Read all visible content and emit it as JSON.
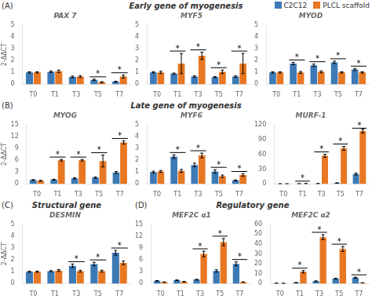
{
  "legend": "upper right",
  "annotations": [
    {
      "text": "(A)"
    },
    {
      "text": "Early gene of myogenesis"
    },
    {
      "text": "(B)"
    },
    {
      "text": "Late gene of myogenesis"
    },
    {
      "text": "(C)"
    },
    {
      "text": "Structural gene"
    },
    {
      "text": "(D)"
    },
    {
      "text": "Regulatory gene"
    }
  ],
  "chart_data": [
    {
      "type": "bar",
      "title": "PAX 7",
      "ylabel": "2-ΔΔCT",
      "categories": [
        "T0",
        "T1",
        "T3",
        "T5",
        "T7"
      ],
      "series": [
        {
          "name": "C2C12",
          "color": "#3d7ab5",
          "values": [
            1.0,
            1.05,
            0.62,
            0.38,
            0.22
          ],
          "errors": [
            0.05,
            0.06,
            0.07,
            0.05,
            0.04
          ]
        },
        {
          "name": "PLCL scaffold",
          "color": "#e87722",
          "values": [
            1.0,
            1.1,
            0.65,
            0.18,
            0.65
          ],
          "errors": [
            0.05,
            0.1,
            0.08,
            0.04,
            0.12
          ]
        }
      ],
      "ylim": [
        0,
        5
      ],
      "yticks": [
        0,
        1,
        2,
        3,
        4,
        5
      ],
      "grid": false,
      "annotations": [
        {
          "text": "*",
          "x": "T5"
        },
        {
          "text": "*",
          "x": "T7"
        }
      ]
    },
    {
      "type": "bar",
      "title": "MYF5",
      "categories": [
        "T0",
        "T1",
        "T3",
        "T5",
        "T7"
      ],
      "series": [
        {
          "name": "C2C12",
          "color": "#3d7ab5",
          "values": [
            1.0,
            0.9,
            0.65,
            0.6,
            0.65
          ],
          "errors": [
            0.05,
            0.05,
            0.06,
            0.05,
            0.06
          ]
        },
        {
          "name": "PLCL scaffold",
          "color": "#e87722",
          "values": [
            1.0,
            1.75,
            2.4,
            1.05,
            1.75
          ],
          "errors": [
            0.1,
            0.85,
            0.3,
            0.15,
            0.85
          ]
        }
      ],
      "ylim": [
        0,
        5
      ],
      "yticks": [
        0,
        1,
        2,
        3,
        4,
        5
      ],
      "grid": false,
      "annotations": [
        {
          "text": "*",
          "x": "T1"
        },
        {
          "text": "*",
          "x": "T3"
        },
        {
          "text": "*",
          "x": "T5"
        },
        {
          "text": "*",
          "x": "T7"
        }
      ]
    },
    {
      "type": "bar",
      "title": "MYOD",
      "categories": [
        "T0",
        "T1",
        "T3",
        "T5",
        "T7"
      ],
      "series": [
        {
          "name": "C2C12",
          "color": "#3d7ab5",
          "values": [
            1.0,
            1.75,
            1.6,
            1.85,
            1.25
          ],
          "errors": [
            0.05,
            0.1,
            0.1,
            0.1,
            0.08
          ]
        },
        {
          "name": "PLCL scaffold",
          "color": "#e87722",
          "values": [
            1.0,
            1.0,
            1.05,
            1.0,
            1.0
          ],
          "errors": [
            0.05,
            0.08,
            0.08,
            0.05,
            0.05
          ]
        }
      ],
      "ylim": [
        0,
        5
      ],
      "yticks": [
        0,
        1,
        2,
        3,
        4,
        5
      ],
      "grid": false,
      "annotations": [
        {
          "text": "*",
          "x": "T1"
        },
        {
          "text": "*",
          "x": "T3"
        },
        {
          "text": "*",
          "x": "T5"
        },
        {
          "text": "*",
          "x": "T7"
        }
      ]
    },
    {
      "type": "bar",
      "title": "MYOG",
      "ylabel": "2-ΔΔCT",
      "categories": [
        "T0",
        "T1",
        "T3",
        "T5",
        "T7"
      ],
      "series": [
        {
          "name": "C2C12",
          "color": "#3d7ab5",
          "values": [
            1.0,
            1.1,
            1.4,
            1.6,
            2.9
          ],
          "errors": [
            0.1,
            0.1,
            0.15,
            0.15,
            0.25
          ]
        },
        {
          "name": "PLCL scaffold",
          "color": "#e87722",
          "values": [
            0.8,
            6.0,
            6.0,
            5.8,
            10.5
          ],
          "errors": [
            0.1,
            0.2,
            0.2,
            1.5,
            0.4
          ]
        }
      ],
      "ylim": [
        0,
        15
      ],
      "yticks": [
        0,
        3,
        6,
        9,
        12,
        15
      ],
      "grid": false,
      "annotations": [
        {
          "text": "*",
          "x": "T1"
        },
        {
          "text": "*",
          "x": "T3"
        },
        {
          "text": "*",
          "x": "T5"
        },
        {
          "text": "*",
          "x": "T7"
        }
      ]
    },
    {
      "type": "bar",
      "title": "MYF6",
      "categories": [
        "T0",
        "T1",
        "T3",
        "T5",
        "T7"
      ],
      "series": [
        {
          "name": "C2C12",
          "color": "#3d7ab5",
          "values": [
            1.0,
            2.3,
            1.6,
            1.05,
            0.3
          ],
          "errors": [
            0.08,
            0.15,
            0.15,
            0.15,
            0.04
          ]
        },
        {
          "name": "PLCL scaffold",
          "color": "#e87722",
          "values": [
            1.05,
            1.1,
            2.4,
            0.65,
            0.75
          ],
          "errors": [
            0.08,
            0.12,
            0.2,
            0.1,
            0.1
          ]
        }
      ],
      "ylim": [
        0,
        5
      ],
      "yticks": [
        0,
        1,
        2,
        3,
        4,
        5
      ],
      "grid": false,
      "annotations": [
        {
          "text": "*",
          "x": "T1"
        },
        {
          "text": "*",
          "x": "T3"
        },
        {
          "text": "*",
          "x": "T5"
        },
        {
          "text": "*",
          "x": "T7"
        }
      ]
    },
    {
      "type": "bar",
      "title": "MURF-1",
      "categories": [
        "T0",
        "T1",
        "T3",
        "T5",
        "T7"
      ],
      "series": [
        {
          "name": "C2C12",
          "color": "#3d7ab5",
          "values": [
            0.3,
            0.5,
            0.8,
            2.0,
            20.0
          ],
          "errors": [
            0.05,
            0.05,
            0.1,
            0.3,
            2.0
          ]
        },
        {
          "name": "PLCL scaffold",
          "color": "#e87722",
          "values": [
            0.3,
            0.8,
            57.0,
            72.0,
            107.0
          ],
          "errors": [
            0.05,
            0.1,
            3.0,
            4.0,
            4.0
          ]
        }
      ],
      "ylim": [
        0,
        120
      ],
      "yticks": [
        0,
        30,
        60,
        90,
        120
      ],
      "grid": false,
      "annotations": [
        {
          "text": "*",
          "x": "T1"
        },
        {
          "text": "*",
          "x": "T3"
        },
        {
          "text": "*",
          "x": "T5"
        },
        {
          "text": "*",
          "x": "T7"
        }
      ]
    },
    {
      "type": "bar",
      "title": "DESMIN",
      "ylabel": "2-ΔΔCT",
      "categories": [
        "T0",
        "T1",
        "T3",
        "T5",
        "T7"
      ],
      "series": [
        {
          "name": "C2C12",
          "color": "#3d7ab5",
          "values": [
            1.0,
            1.05,
            1.5,
            1.65,
            2.6
          ],
          "errors": [
            0.05,
            0.05,
            0.15,
            0.15,
            0.2
          ]
        },
        {
          "name": "PLCL scaffold",
          "color": "#e87722",
          "values": [
            1.0,
            1.1,
            1.05,
            1.05,
            1.75
          ],
          "errors": [
            0.05,
            0.08,
            0.08,
            0.08,
            0.15
          ]
        }
      ],
      "ylim": [
        0,
        5
      ],
      "yticks": [
        0,
        1,
        2,
        3,
        4,
        5
      ],
      "grid": false,
      "annotations": [
        {
          "text": "*",
          "x": "T3"
        },
        {
          "text": "*",
          "x": "T5"
        },
        {
          "text": "*",
          "x": "T7"
        }
      ]
    },
    {
      "type": "bar",
      "title": "MEF2C α1",
      "categories": [
        "T0",
        "T1",
        "T3",
        "T5",
        "T7"
      ],
      "series": [
        {
          "name": "C2C12",
          "color": "#3d7ab5",
          "values": [
            0.7,
            0.85,
            1.0,
            3.2,
            5.0
          ],
          "errors": [
            0.08,
            0.1,
            0.1,
            0.3,
            0.5
          ]
        },
        {
          "name": "PLCL scaffold",
          "color": "#e87722",
          "values": [
            0.4,
            0.5,
            7.5,
            10.5,
            0.4
          ],
          "errors": [
            0.04,
            0.05,
            0.7,
            0.9,
            0.04
          ]
        }
      ],
      "ylim": [
        0,
        15
      ],
      "yticks": [
        0,
        3,
        6,
        9,
        12,
        15
      ],
      "grid": false,
      "annotations": [
        {
          "text": "*",
          "x": "T3"
        },
        {
          "text": "*",
          "x": "T5"
        },
        {
          "text": "*",
          "x": "T7"
        }
      ]
    },
    {
      "type": "bar",
      "title": "MEF2C α2",
      "categories": [
        "T0",
        "T1",
        "T3",
        "T5",
        "T7"
      ],
      "series": [
        {
          "name": "C2C12",
          "color": "#3d7ab5",
          "values": [
            0.4,
            1.0,
            2.5,
            5.0,
            6.0
          ],
          "errors": [
            0.04,
            0.1,
            0.3,
            0.5,
            0.5
          ]
        },
        {
          "name": "PLCL scaffold",
          "color": "#e87722",
          "values": [
            0.3,
            12.0,
            47.0,
            35.0,
            0.8
          ],
          "errors": [
            0.04,
            1.2,
            2.5,
            2.5,
            0.08
          ]
        }
      ],
      "ylim": [
        0,
        60
      ],
      "yticks": [
        0,
        10,
        20,
        30,
        40,
        50,
        60
      ],
      "grid": false,
      "annotations": [
        {
          "text": "*",
          "x": "T1"
        },
        {
          "text": "*",
          "x": "T3"
        },
        {
          "text": "*",
          "x": "T5"
        },
        {
          "text": "*",
          "x": "T7"
        }
      ]
    }
  ]
}
